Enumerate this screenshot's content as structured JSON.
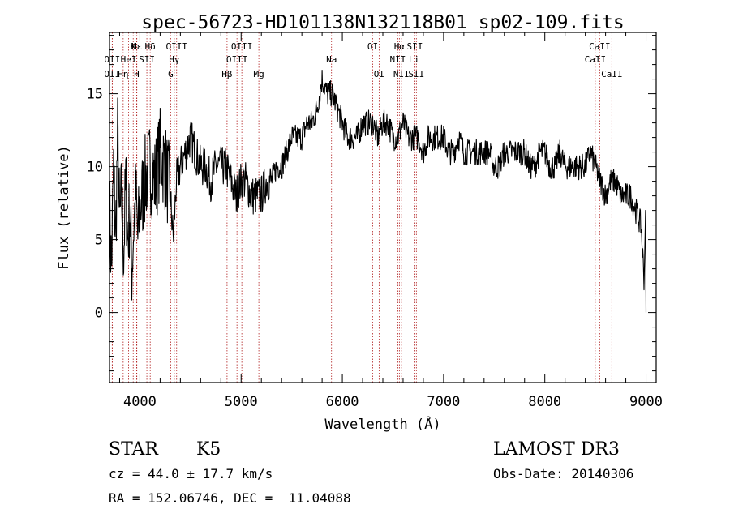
{
  "chart_data": {
    "type": "line",
    "title": "spec-56723-HD101138N132118B01_sp02-109.fits",
    "xlabel": "Wavelength (Å)",
    "ylabel": "Flux (relative)",
    "xlim": [
      3700,
      9100
    ],
    "ylim": [
      -4.8,
      19.2
    ],
    "xticks": [
      4000,
      5000,
      6000,
      7000,
      8000,
      9000
    ],
    "yticks": [
      0,
      5,
      10,
      15
    ],
    "xtick_labels": [
      "4000",
      "5000",
      "6000",
      "7000",
      "8000",
      "9000"
    ],
    "ytick_labels": [
      "0",
      "5",
      "10",
      "15"
    ],
    "grid": false,
    "series": [
      {
        "name": "flux",
        "color": "#000000",
        "x": [
          3700,
          3720,
          3740,
          3760,
          3780,
          3800,
          3820,
          3840,
          3860,
          3880,
          3900,
          3920,
          3940,
          3960,
          3980,
          4000,
          4050,
          4100,
          4150,
          4200,
          4250,
          4300,
          4330,
          4360,
          4400,
          4450,
          4500,
          4550,
          4600,
          4650,
          4700,
          4750,
          4800,
          4850,
          4900,
          4950,
          5000,
          5050,
          5100,
          5150,
          5200,
          5250,
          5300,
          5350,
          5400,
          5450,
          5500,
          5550,
          5600,
          5650,
          5700,
          5750,
          5800,
          5850,
          5900,
          5950,
          6000,
          6050,
          6100,
          6150,
          6200,
          6250,
          6300,
          6350,
          6400,
          6450,
          6500,
          6550,
          6600,
          6650,
          6700,
          6750,
          6800,
          6850,
          6900,
          6950,
          7000,
          7050,
          7100,
          7150,
          7200,
          7250,
          7300,
          7350,
          7400,
          7450,
          7500,
          7550,
          7600,
          7650,
          7700,
          7750,
          7800,
          7850,
          7900,
          7950,
          8000,
          8050,
          8100,
          8150,
          8200,
          8250,
          8300,
          8350,
          8400,
          8450,
          8500,
          8550,
          8600,
          8650,
          8700,
          8750,
          8800,
          8850,
          8900,
          8950,
          9000
        ],
        "y": [
          7,
          3,
          10,
          5,
          12,
          6,
          8,
          4,
          9,
          5,
          7,
          3,
          6,
          8,
          5,
          7,
          9,
          10,
          9,
          11,
          10,
          8,
          5,
          9,
          10,
          11,
          12,
          11,
          10,
          10,
          9,
          10,
          10,
          10,
          9,
          8,
          9,
          9,
          8,
          8,
          8,
          9,
          9,
          10,
          10,
          11,
          12,
          12,
          12,
          13,
          13,
          14,
          16,
          15,
          15,
          14,
          13,
          12,
          12,
          12,
          13,
          13,
          13,
          12,
          13,
          13,
          12,
          12,
          13,
          12,
          12,
          12,
          11,
          12,
          12,
          12,
          12,
          11,
          11,
          12,
          11,
          11,
          11,
          11,
          11,
          11,
          10,
          10,
          11,
          11,
          11,
          11,
          11,
          10,
          10,
          11,
          11,
          10,
          10,
          11,
          10,
          10,
          10,
          10,
          10,
          11,
          10,
          9,
          8,
          9,
          9,
          8,
          8,
          8,
          7,
          6,
          0
        ]
      }
    ],
    "lines": [
      {
        "label": "Hε",
        "wl": 3970,
        "row": 1
      },
      {
        "label": "OII",
        "wl": 3727,
        "row": 2
      },
      {
        "label": "OII",
        "wl": 3727,
        "row": 3
      },
      {
        "label": "K",
        "wl": 3934,
        "row": 1
      },
      {
        "label": "HeI",
        "wl": 3889,
        "row": 2
      },
      {
        "label": "Hη",
        "wl": 3835,
        "row": 3
      },
      {
        "label": "Hδ",
        "wl": 4102,
        "row": 1
      },
      {
        "label": "SII",
        "wl": 4069,
        "row": 2
      },
      {
        "label": "H",
        "wl": 3968,
        "row": 3
      },
      {
        "label": "OIII",
        "wl": 4363,
        "row": 1
      },
      {
        "label": "Hγ",
        "wl": 4340,
        "row": 2
      },
      {
        "label": "G",
        "wl": 4304,
        "row": 3
      },
      {
        "label": "OIII",
        "wl": 5007,
        "row": 1
      },
      {
        "label": "OIII",
        "wl": 4959,
        "row": 2
      },
      {
        "label": "Hβ",
        "wl": 4861,
        "row": 3
      },
      {
        "label": "Mg",
        "wl": 5175,
        "row": 3
      },
      {
        "label": "Na",
        "wl": 5893,
        "row": 2
      },
      {
        "label": "OI",
        "wl": 6300,
        "row": 1
      },
      {
        "label": "OI",
        "wl": 6363,
        "row": 3
      },
      {
        "label": "Hα",
        "wl": 6563,
        "row": 1
      },
      {
        "label": "SII",
        "wl": 6716,
        "row": 1
      },
      {
        "label": "NII",
        "wl": 6548,
        "row": 2
      },
      {
        "label": "Li",
        "wl": 6708,
        "row": 2
      },
      {
        "label": "NII",
        "wl": 6583,
        "row": 3
      },
      {
        "label": "SII",
        "wl": 6731,
        "row": 3
      },
      {
        "label": "CaII",
        "wl": 8542,
        "row": 1
      },
      {
        "label": "CaII",
        "wl": 8498,
        "row": 2
      },
      {
        "label": "CaII",
        "wl": 8662,
        "row": 3
      }
    ]
  },
  "info": {
    "object_class": "STAR",
    "subclass": "K5",
    "survey": "LAMOST DR3",
    "cz": "cz = 44.0 ± 17.7 km/s",
    "obs_date": "Obs-Date: 20140306",
    "coords": "RA = 152.06746, DEC =  11.04088"
  },
  "colors": {
    "line_marker": "#b22222",
    "spectrum": "#000000"
  }
}
